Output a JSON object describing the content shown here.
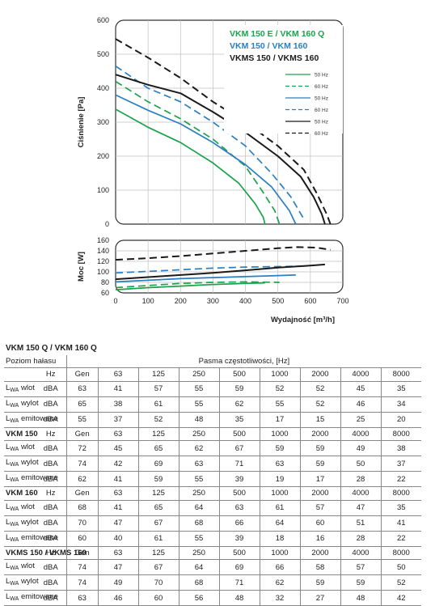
{
  "chart_data": [
    {
      "type": "line",
      "ylabel": "Ciśnienie [Pa]",
      "xlabel": "",
      "xlim": [
        0,
        700
      ],
      "ylim": [
        0,
        600
      ],
      "yticks": [
        0,
        100,
        200,
        300,
        400,
        500,
        600
      ],
      "grid": true,
      "legend_titles": [
        {
          "text": "VKM 150 E / VKM 160 Q",
          "color": "#1aa34a"
        },
        {
          "text": "VKM 150 / VKM 160",
          "color": "#2a7fc4"
        },
        {
          "text": "VKMS 150 / VKMS 160",
          "color": "#1a1a1a"
        }
      ],
      "series": [
        {
          "name": "50 Hz",
          "color": "#1aa34a",
          "dashed": false,
          "points": [
            [
              0,
              338
            ],
            [
              100,
              285
            ],
            [
              200,
              240
            ],
            [
              300,
              180
            ],
            [
              380,
              120
            ],
            [
              430,
              60
            ],
            [
              455,
              20
            ],
            [
              460,
              0
            ]
          ]
        },
        {
          "name": "60 Hz",
          "color": "#1aa34a",
          "dashed": true,
          "points": [
            [
              0,
              420
            ],
            [
              100,
              360
            ],
            [
              200,
              310
            ],
            [
              300,
              250
            ],
            [
              400,
              170
            ],
            [
              450,
              100
            ],
            [
              490,
              40
            ],
            [
              505,
              0
            ]
          ]
        },
        {
          "name": "50 Hz",
          "color": "#2a7fc4",
          "dashed": false,
          "points": [
            [
              0,
              380
            ],
            [
              100,
              335
            ],
            [
              200,
              295
            ],
            [
              300,
              240
            ],
            [
              400,
              175
            ],
            [
              480,
              110
            ],
            [
              535,
              40
            ],
            [
              555,
              0
            ]
          ]
        },
        {
          "name": "60 Hz",
          "color": "#2a7fc4",
          "dashed": true,
          "points": [
            [
              0,
              465
            ],
            [
              100,
              400
            ],
            [
              200,
              360
            ],
            [
              300,
              300
            ],
            [
              400,
              230
            ],
            [
              480,
              150
            ],
            [
              540,
              80
            ],
            [
              580,
              15
            ]
          ]
        },
        {
          "name": "50 Hz",
          "color": "#1a1a1a",
          "dashed": false,
          "points": [
            [
              0,
              440
            ],
            [
              100,
              410
            ],
            [
              200,
              385
            ],
            [
              300,
              330
            ],
            [
              400,
              270
            ],
            [
              500,
              200
            ],
            [
              570,
              140
            ],
            [
              610,
              80
            ],
            [
              635,
              30
            ],
            [
              645,
              0
            ]
          ]
        },
        {
          "name": "60 Hz",
          "color": "#1a1a1a",
          "dashed": true,
          "points": [
            [
              0,
              545
            ],
            [
              100,
              490
            ],
            [
              200,
              430
            ],
            [
              300,
              360
            ],
            [
              400,
              300
            ],
            [
              500,
              230
            ],
            [
              580,
              160
            ],
            [
              620,
              90
            ],
            [
              650,
              30
            ],
            [
              662,
              0
            ]
          ]
        }
      ]
    },
    {
      "type": "line",
      "ylabel": "Moc [W]",
      "xlabel": "Wydajność [m³/h]",
      "xlim": [
        0,
        700
      ],
      "ylim": [
        60,
        160
      ],
      "yticks": [
        60,
        80,
        100,
        120,
        140,
        160
      ],
      "xticks": [
        0,
        100,
        200,
        300,
        400,
        500,
        600,
        700
      ],
      "grid": true,
      "series": [
        {
          "name": "50 Hz",
          "color": "#1aa34a",
          "dashed": false,
          "points": [
            [
              0,
              66
            ],
            [
              100,
              70
            ],
            [
              200,
              73
            ],
            [
              300,
              76
            ],
            [
              400,
              78
            ],
            [
              460,
              79
            ]
          ]
        },
        {
          "name": "60 Hz",
          "color": "#1aa34a",
          "dashed": true,
          "points": [
            [
              0,
              70
            ],
            [
              100,
              74
            ],
            [
              200,
              78
            ],
            [
              300,
              80
            ],
            [
              400,
              81
            ],
            [
              505,
              80
            ]
          ]
        },
        {
          "name": "50 Hz",
          "color": "#2a7fc4",
          "dashed": false,
          "points": [
            [
              0,
              81
            ],
            [
              100,
              84
            ],
            [
              200,
              87
            ],
            [
              300,
              89
            ],
            [
              400,
              91
            ],
            [
              500,
              93
            ],
            [
              555,
              94
            ]
          ]
        },
        {
          "name": "60 Hz",
          "color": "#2a7fc4",
          "dashed": true,
          "points": [
            [
              0,
              98
            ],
            [
              100,
              101
            ],
            [
              200,
              104
            ],
            [
              300,
              107
            ],
            [
              400,
              109
            ],
            [
              500,
              110
            ],
            [
              580,
              111
            ]
          ]
        },
        {
          "name": "50 Hz",
          "color": "#1a1a1a",
          "dashed": false,
          "points": [
            [
              0,
              86
            ],
            [
              100,
              90
            ],
            [
              200,
              94
            ],
            [
              300,
              98
            ],
            [
              400,
              103
            ],
            [
              500,
              108
            ],
            [
              600,
              112
            ],
            [
              645,
              114
            ]
          ]
        },
        {
          "name": "60 Hz",
          "color": "#1a1a1a",
          "dashed": true,
          "points": [
            [
              0,
              123
            ],
            [
              100,
              126
            ],
            [
              200,
              130
            ],
            [
              300,
              135
            ],
            [
              400,
              140
            ],
            [
              500,
              145
            ],
            [
              560,
              147
            ],
            [
              620,
              146
            ],
            [
              662,
              142
            ]
          ]
        }
      ]
    }
  ],
  "noise_table": {
    "title": "VKM 150 Q / VKM 160 Q",
    "subtitle": "Poziom hałasu",
    "band_header": "Pasma częstotliwości, [Hz]",
    "hz_label": "Hz",
    "columns": [
      "Gen",
      "63",
      "125",
      "250",
      "500",
      "1000",
      "2000",
      "4000",
      "8000"
    ],
    "sections": [
      {
        "name": "",
        "rows": [
          {
            "label": "wlot",
            "unit": "dBA",
            "values": [
              "63",
              "41",
              "57",
              "55",
              "59",
              "52",
              "52",
              "45",
              "35"
            ]
          },
          {
            "label": "wylot",
            "unit": "dBA",
            "values": [
              "65",
              "38",
              "61",
              "55",
              "62",
              "55",
              "52",
              "46",
              "34"
            ]
          },
          {
            "label": "emitowane",
            "unit": "dBA",
            "values": [
              "55",
              "37",
              "52",
              "48",
              "35",
              "17",
              "15",
              "25",
              "20"
            ]
          }
        ]
      },
      {
        "name": "VKM 150",
        "rows": [
          {
            "label": "wlot",
            "unit": "dBA",
            "values": [
              "72",
              "45",
              "65",
              "62",
              "67",
              "59",
              "59",
              "49",
              "38"
            ]
          },
          {
            "label": "wylot",
            "unit": "dBA",
            "values": [
              "74",
              "42",
              "69",
              "63",
              "71",
              "63",
              "59",
              "50",
              "37"
            ]
          },
          {
            "label": "emitowane",
            "unit": "dBA",
            "values": [
              "62",
              "41",
              "59",
              "55",
              "39",
              "19",
              "17",
              "28",
              "22"
            ]
          }
        ]
      },
      {
        "name": "VKM 160",
        "rows": [
          {
            "label": "wlot",
            "unit": "dBA",
            "values": [
              "68",
              "41",
              "65",
              "64",
              "63",
              "61",
              "57",
              "47",
              "35"
            ]
          },
          {
            "label": "wylot",
            "unit": "dBA",
            "values": [
              "70",
              "47",
              "67",
              "68",
              "66",
              "64",
              "60",
              "51",
              "41"
            ]
          },
          {
            "label": "emitowane",
            "unit": "dBA",
            "values": [
              "60",
              "40",
              "61",
              "55",
              "39",
              "18",
              "16",
              "28",
              "22"
            ]
          }
        ]
      },
      {
        "name": "VKMS 150 / VKMS 160",
        "rows": [
          {
            "label": "wlot",
            "unit": "dBA",
            "values": [
              "74",
              "47",
              "67",
              "64",
              "69",
              "66",
              "58",
              "57",
              "50"
            ]
          },
          {
            "label": "wylot",
            "unit": "dBA",
            "values": [
              "74",
              "49",
              "70",
              "68",
              "71",
              "62",
              "59",
              "59",
              "52"
            ]
          },
          {
            "label": "emitowane",
            "unit": "dBA",
            "values": [
              "63",
              "46",
              "60",
              "56",
              "48",
              "32",
              "27",
              "48",
              "42"
            ]
          }
        ]
      }
    ]
  }
}
